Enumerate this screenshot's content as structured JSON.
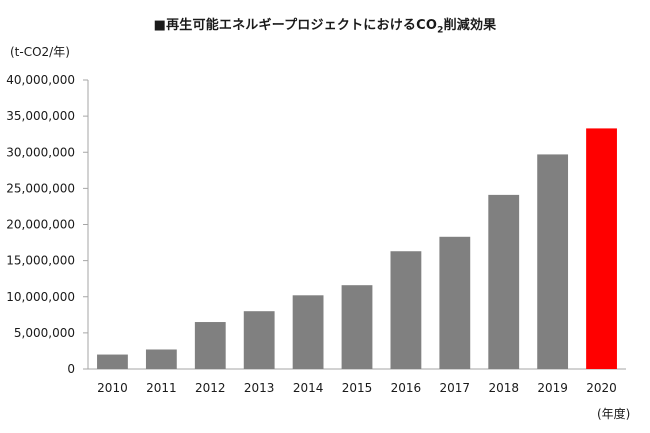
{
  "chart_data": {
    "type": "bar",
    "title_main": "■再生可能エネルギープロジェクトにおけるCO",
    "title_sub": "2",
    "title_tail": "削減効果",
    "ylabel": "(t-CO2/年)",
    "xlabel": "(年度)",
    "categories": [
      "2010",
      "2011",
      "2012",
      "2013",
      "2014",
      "2015",
      "2016",
      "2017",
      "2018",
      "2019",
      "2020"
    ],
    "values": [
      2000000,
      2700000,
      6500000,
      8000000,
      10200000,
      11600000,
      16300000,
      18300000,
      24100000,
      29700000,
      33300000
    ],
    "bar_colors": [
      "#808080",
      "#808080",
      "#808080",
      "#808080",
      "#808080",
      "#808080",
      "#808080",
      "#808080",
      "#808080",
      "#808080",
      "#ff0000"
    ],
    "ylim": [
      0,
      40000000
    ],
    "yticks": [
      "0",
      "5,000,000",
      "10,000,000",
      "15,000,000",
      "20,000,000",
      "25,000,000",
      "30,000,000",
      "35,000,000",
      "40,000,000"
    ],
    "grid": false,
    "legend": "none"
  }
}
